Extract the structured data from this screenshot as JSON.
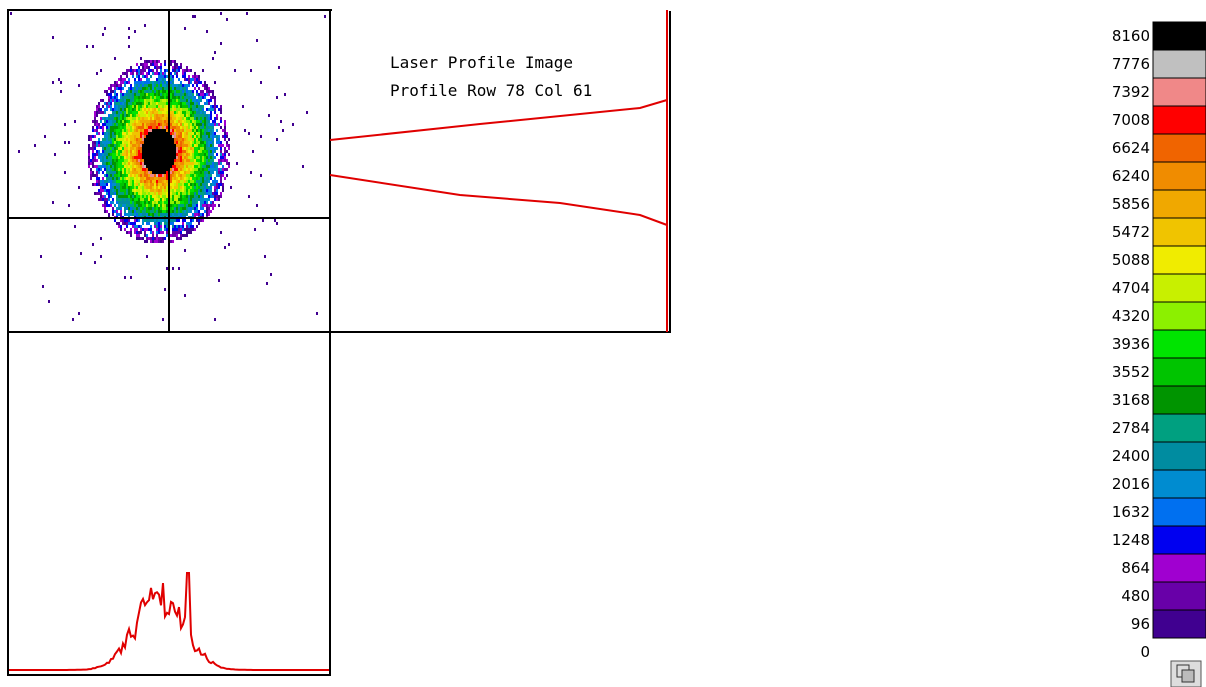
{
  "title": {
    "line1": "Laser Profile Image",
    "line2": "Profile Row 78 Col 61"
  },
  "legend": {
    "levels": [
      {
        "label": 8160,
        "color": "#000000"
      },
      {
        "label": 7776,
        "color": "#c0c0c0"
      },
      {
        "label": 7392,
        "color": "#f08888"
      },
      {
        "label": 7008,
        "color": "#ff0000"
      },
      {
        "label": 6624,
        "color": "#f06400"
      },
      {
        "label": 6240,
        "color": "#f08c00"
      },
      {
        "label": 5856,
        "color": "#f0a800"
      },
      {
        "label": 5472,
        "color": "#f0c400"
      },
      {
        "label": 5088,
        "color": "#f0ec00"
      },
      {
        "label": 4704,
        "color": "#c8f000"
      },
      {
        "label": 4320,
        "color": "#8cf000"
      },
      {
        "label": 3936,
        "color": "#00e400"
      },
      {
        "label": 3552,
        "color": "#00c400"
      },
      {
        "label": 3168,
        "color": "#009400"
      },
      {
        "label": 2784,
        "color": "#00a080"
      },
      {
        "label": 2400,
        "color": "#008ca0"
      },
      {
        "label": 2016,
        "color": "#008cd0"
      },
      {
        "label": 1632,
        "color": "#0070f0"
      },
      {
        "label": 1248,
        "color": "#0000f0"
      },
      {
        "label": 864,
        "color": "#a000d0"
      },
      {
        "label": 480,
        "color": "#6800a8"
      },
      {
        "label": 96,
        "color": "#400090"
      },
      {
        "label": 0,
        "color": "#ffffff"
      }
    ]
  }
}
